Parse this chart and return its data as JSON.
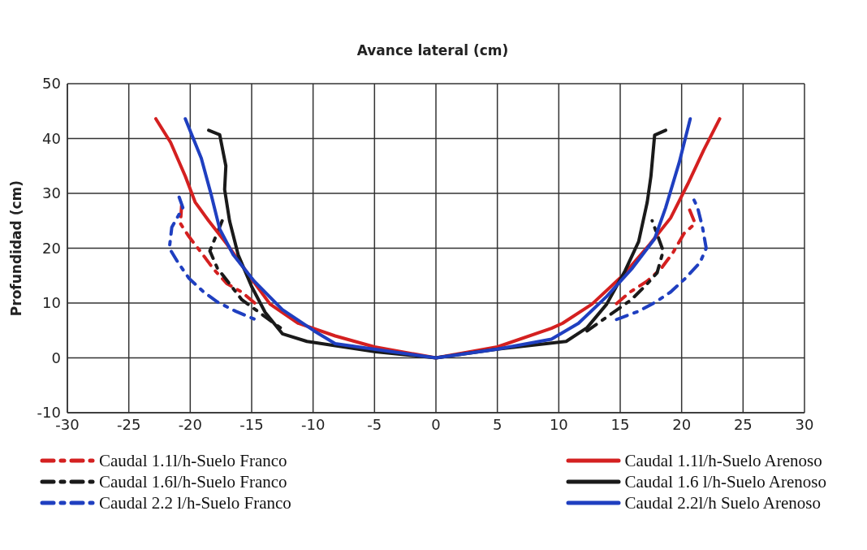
{
  "chart_data": {
    "type": "line",
    "xlabel": "Avance lateral (cm)",
    "ylabel": "Profundidad (cm)",
    "xlim": [
      -30,
      30
    ],
    "xticks": [
      -30,
      -25,
      -20,
      -15,
      -10,
      -5,
      0,
      5,
      10,
      15,
      20,
      25,
      30
    ],
    "ylim": [
      -10,
      50
    ],
    "yticks": [
      -10,
      0,
      10,
      20,
      30,
      40,
      50
    ],
    "grid": true,
    "legend": "bottom",
    "marker": "none",
    "series": [
      {
        "name": "Caudal 1.1l/h-Suelo Franco",
        "color": "#d42020",
        "line_style": "dashed",
        "x": [
          -20.7,
          -20.8,
          -20.1,
          -19.1,
          -18.1,
          -17,
          -15.8,
          -14.7,
          0,
          14.7,
          15.8,
          17.2,
          18.3,
          19.3,
          20.2,
          21.1,
          20.5
        ],
        "values": [
          27.8,
          24.5,
          22.1,
          19.2,
          16.2,
          13.5,
          12,
          9.9,
          null,
          9.9,
          12,
          14,
          16.2,
          19.2,
          22.7,
          24.5,
          27.8
        ]
      },
      {
        "name": "Caudal 1.6l/h-Suelo Franco",
        "color": "#1a1a1a",
        "line_style": "dashed",
        "x": [
          -17.4,
          -18.4,
          -17.8,
          -16.8,
          -15.8,
          -12.3,
          0,
          12.3,
          15.9,
          17.2,
          18,
          18.5,
          17.6
        ],
        "values": [
          25,
          19.5,
          16.4,
          13.5,
          10.6,
          4.9,
          null,
          4.9,
          10.6,
          13.5,
          15.5,
          19.5,
          25
        ]
      },
      {
        "name": "Caudal 2.2 l/h-Suelo Franco",
        "color": "#1f3fc0",
        "line_style": "dashed",
        "x": [
          -20.9,
          -20.6,
          -21.5,
          -21.7,
          -21,
          -20.1,
          -18.9,
          -17.8,
          -16.3,
          -14.7,
          0,
          14.7,
          16.5,
          17.9,
          19.1,
          20.3,
          21.5,
          22,
          21.7,
          21.3,
          20.9
        ],
        "values": [
          29.3,
          27.4,
          23.8,
          20,
          17.4,
          14.5,
          12,
          10.2,
          8.5,
          7,
          null,
          7,
          8.5,
          10.2,
          12,
          14.5,
          17.4,
          20,
          23.8,
          27.4,
          29.3
        ]
      },
      {
        "name": "Caudal 1.1l/h-Suelo Arenoso",
        "color": "#d42020",
        "line_style": "solid",
        "x": [
          -22.8,
          -21.6,
          -20.4,
          -19.6,
          -18.5,
          -17,
          -15.2,
          -13.5,
          -11.2,
          -8.2,
          -5,
          0,
          5,
          9.4,
          10.3,
          12.7,
          15.2,
          17.4,
          19.1,
          20.5,
          21.8,
          23.1
        ],
        "values": [
          43.6,
          39.3,
          33.1,
          28.4,
          25,
          20.7,
          15,
          9.8,
          6.3,
          4,
          2,
          0,
          2,
          5.4,
          6.3,
          9.8,
          15,
          20.7,
          25.5,
          31.7,
          37.9,
          43.6
        ]
      },
      {
        "name": "Caudal 1.6 l/h-Suelo Arenoso",
        "color": "#1a1a1a",
        "line_style": "solid",
        "x": [
          -18.5,
          -17.6,
          -17.1,
          -17.2,
          -16.8,
          -16.1,
          -15,
          -13.9,
          -12.5,
          -10.5,
          -4.9,
          0,
          5,
          10.6,
          12.3,
          13.9,
          15.4,
          16.5,
          17.2,
          17.5,
          17.8,
          18.7
        ],
        "values": [
          41.5,
          40.7,
          35,
          30.7,
          25,
          18.8,
          13,
          8.3,
          4.4,
          3,
          1.1,
          0,
          1.6,
          3,
          5.5,
          9.8,
          15.9,
          21.2,
          28.4,
          33.1,
          40.6,
          41.5
        ]
      },
      {
        "name": "Caudal 2.2l/h Suelo Arenoso",
        "color": "#1f3fc0",
        "line_style": "solid",
        "x": [
          -20.4,
          -19.1,
          -18.3,
          -17.6,
          -16.5,
          -14.8,
          -12.5,
          -9.9,
          -8.2,
          0,
          5,
          9.4,
          11.6,
          13.9,
          16,
          17.8,
          18.7,
          19.8,
          20.7
        ],
        "values": [
          43.6,
          36.4,
          29.8,
          23.5,
          18.8,
          14,
          8.8,
          4.9,
          2.6,
          0,
          1.6,
          3.4,
          6.3,
          11.2,
          16.4,
          21.7,
          27.4,
          35.6,
          43.6
        ]
      }
    ]
  }
}
